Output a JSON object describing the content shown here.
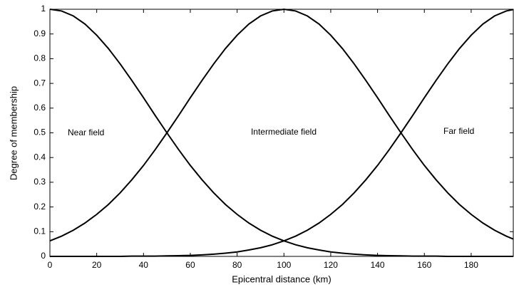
{
  "chart_data": {
    "type": "line",
    "x_label": "Epicentral distance (km)",
    "y_label": "Degree of membership",
    "x": [
      0,
      5,
      10,
      15,
      20,
      25,
      30,
      35,
      40,
      45,
      50,
      55,
      60,
      65,
      70,
      75,
      80,
      85,
      90,
      95,
      100,
      105,
      110,
      115,
      120,
      125,
      130,
      135,
      140,
      145,
      150,
      155,
      160,
      165,
      170,
      175,
      180,
      185,
      190,
      195,
      198
    ],
    "series": [
      {
        "name": "Near field",
        "color": "#000000",
        "values": [
          1,
          0.993,
          0.973,
          0.94,
          0.895,
          0.841,
          0.779,
          0.712,
          0.642,
          0.57,
          0.5,
          0.432,
          0.368,
          0.31,
          0.257,
          0.21,
          0.17,
          0.135,
          0.106,
          0.082,
          0.063,
          0.047,
          0.035,
          0.026,
          0.018,
          0.013,
          0.009,
          0.006,
          0.004,
          0.003,
          0.002,
          0.001,
          0.001,
          0.001,
          0,
          0,
          0,
          0,
          0,
          0,
          0
        ]
      },
      {
        "name": "Intermediate field",
        "color": "#000000",
        "values": [
          0.063,
          0.082,
          0.106,
          0.135,
          0.17,
          0.21,
          0.257,
          0.31,
          0.368,
          0.432,
          0.5,
          0.57,
          0.642,
          0.712,
          0.779,
          0.841,
          0.895,
          0.94,
          0.973,
          0.993,
          1,
          0.993,
          0.973,
          0.94,
          0.895,
          0.841,
          0.779,
          0.712,
          0.642,
          0.57,
          0.5,
          0.432,
          0.368,
          0.31,
          0.257,
          0.21,
          0.17,
          0.135,
          0.106,
          0.082,
          0.07
        ]
      },
      {
        "name": "Far  field",
        "color": "#000000",
        "values": [
          0,
          0,
          0,
          0,
          0,
          0,
          0,
          0.001,
          0.001,
          0.001,
          0.002,
          0.003,
          0.004,
          0.006,
          0.009,
          0.013,
          0.018,
          0.026,
          0.035,
          0.047,
          0.063,
          0.082,
          0.106,
          0.135,
          0.17,
          0.21,
          0.257,
          0.31,
          0.368,
          0.432,
          0.5,
          0.57,
          0.642,
          0.712,
          0.779,
          0.841,
          0.895,
          0.94,
          0.973,
          0.993,
          0.999
        ]
      }
    ],
    "xlim": [
      0,
      198
    ],
    "ylim": [
      0,
      1
    ],
    "xticks": [
      0,
      20,
      40,
      60,
      80,
      100,
      120,
      140,
      160,
      180
    ],
    "yticks": [
      0,
      0.1,
      0.2,
      0.3,
      0.4,
      0.5,
      0.6,
      0.7,
      0.8,
      0.9,
      1
    ],
    "grid": false
  }
}
